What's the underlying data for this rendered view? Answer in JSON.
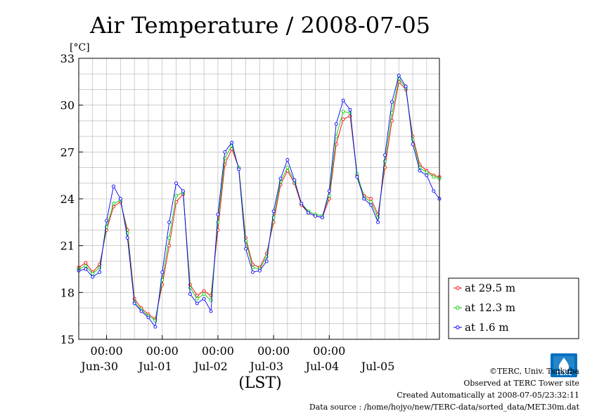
{
  "chart_data": {
    "type": "line",
    "title": "Air Temperature / 2008-07-05",
    "ylabel": "[°C]",
    "xlabel": "(LST)",
    "ylim": [
      15,
      33
    ],
    "yticks": [
      15,
      18,
      21,
      24,
      27,
      30,
      33
    ],
    "xlim": [
      "2008-06-29 12:00",
      "2008-07-05 23:30"
    ],
    "xtick_time_labels": [
      "00:00",
      "00:00",
      "00:00",
      "00:00",
      "00:00"
    ],
    "xtick_time_positions": [
      "2008-06-30 00:00",
      "2008-07-01 00:00",
      "2008-07-02 00:00",
      "2008-07-03 00:00",
      "2008-07-04 00:00"
    ],
    "xtick_date_labels": [
      "Jun-30",
      "Jul-01",
      "Jul-02",
      "Jul-03",
      "Jul-04",
      "Jul-05"
    ],
    "xtick_date_positions": [
      "2008-06-30 00:00",
      "2008-07-01 00:00",
      "2008-07-02 00:00",
      "2008-07-03 00:00",
      "2008-07-04 00:00",
      "2008-07-05 00:00"
    ],
    "grid": true,
    "legend_position": "bottom-right-outside",
    "x": [
      "2008-06-29 12:00",
      "2008-06-29 15:00",
      "2008-06-29 18:00",
      "2008-06-29 21:00",
      "2008-06-30 00:00",
      "2008-06-30 03:00",
      "2008-06-30 06:00",
      "2008-06-30 09:00",
      "2008-06-30 12:00",
      "2008-06-30 15:00",
      "2008-06-30 18:00",
      "2008-06-30 21:00",
      "2008-07-01 00:00",
      "2008-07-01 03:00",
      "2008-07-01 06:00",
      "2008-07-01 09:00",
      "2008-07-01 12:00",
      "2008-07-01 15:00",
      "2008-07-01 18:00",
      "2008-07-01 21:00",
      "2008-07-02 00:00",
      "2008-07-02 03:00",
      "2008-07-02 06:00",
      "2008-07-02 09:00",
      "2008-07-02 12:00",
      "2008-07-02 15:00",
      "2008-07-02 18:00",
      "2008-07-02 21:00",
      "2008-07-03 00:00",
      "2008-07-03 03:00",
      "2008-07-03 06:00",
      "2008-07-03 09:00",
      "2008-07-03 12:00",
      "2008-07-03 15:00",
      "2008-07-03 18:00",
      "2008-07-03 21:00",
      "2008-07-04 00:00",
      "2008-07-04 03:00",
      "2008-07-04 06:00",
      "2008-07-04 09:00",
      "2008-07-04 12:00",
      "2008-07-04 15:00",
      "2008-07-04 18:00",
      "2008-07-04 21:00",
      "2008-07-05 00:00",
      "2008-07-05 03:00",
      "2008-07-05 06:00",
      "2008-07-05 09:00",
      "2008-07-05 12:00",
      "2008-07-05 15:00",
      "2008-07-05 18:00",
      "2008-07-05 21:00",
      "2008-07-05 23:30"
    ],
    "series": [
      {
        "name": "at 29.5 m",
        "color": "#ff0000",
        "values": [
          19.6,
          19.9,
          19.3,
          19.8,
          22.0,
          23.5,
          23.8,
          22.0,
          17.6,
          17.0,
          16.6,
          16.3,
          18.5,
          21.0,
          23.8,
          24.3,
          18.5,
          17.8,
          18.1,
          17.8,
          22.0,
          26.2,
          27.2,
          26.0,
          21.5,
          19.8,
          19.6,
          20.5,
          22.5,
          24.9,
          25.8,
          25.0,
          23.6,
          23.1,
          22.9,
          22.8,
          24.0,
          27.5,
          29.1,
          29.3,
          25.5,
          24.2,
          24.0,
          23.0,
          26.0,
          29.0,
          31.5,
          31.0,
          28.0,
          26.2,
          25.8,
          25.5,
          25.4
        ]
      },
      {
        "name": "at 12.3 m",
        "color": "#00cc00",
        "values": [
          19.5,
          19.7,
          19.2,
          19.6,
          22.2,
          23.7,
          23.9,
          21.8,
          17.4,
          16.9,
          16.5,
          16.2,
          18.8,
          21.5,
          24.2,
          24.4,
          18.3,
          17.6,
          17.9,
          17.5,
          22.5,
          26.6,
          27.4,
          26.0,
          21.3,
          19.6,
          19.5,
          20.3,
          22.8,
          25.1,
          26.0,
          25.1,
          23.7,
          23.2,
          23.0,
          22.9,
          24.2,
          28.0,
          29.6,
          29.5,
          25.6,
          24.1,
          23.8,
          22.8,
          26.4,
          29.5,
          31.7,
          31.1,
          27.8,
          26.0,
          25.7,
          25.4,
          25.3
        ]
      },
      {
        "name": "at 1.6 m",
        "color": "#0000ff",
        "values": [
          19.4,
          19.5,
          19.0,
          19.3,
          22.6,
          24.8,
          24.0,
          21.5,
          17.3,
          16.8,
          16.4,
          15.8,
          19.3,
          22.5,
          25.0,
          24.5,
          17.9,
          17.3,
          17.6,
          16.8,
          23.0,
          27.0,
          27.6,
          25.9,
          20.8,
          19.3,
          19.4,
          20.0,
          23.2,
          25.3,
          26.5,
          25.2,
          23.7,
          23.1,
          22.9,
          22.8,
          24.5,
          28.8,
          30.3,
          29.7,
          25.4,
          24.0,
          23.6,
          22.5,
          26.8,
          30.2,
          31.9,
          31.2,
          27.5,
          25.8,
          25.5,
          24.5,
          24.0
        ]
      }
    ]
  },
  "credits": {
    "copyright": "©TERC, Univ. Tsukuba",
    "site": "Observed at TERC Tower site",
    "created": "Created Automatically at 2008-07-05/23:32:11",
    "source": "Data source : /home/hojyo/new/TERC-data/sorted_data/MET.30m.dat"
  },
  "logo": {
    "text": "TERC",
    "color": "#0070c0"
  }
}
